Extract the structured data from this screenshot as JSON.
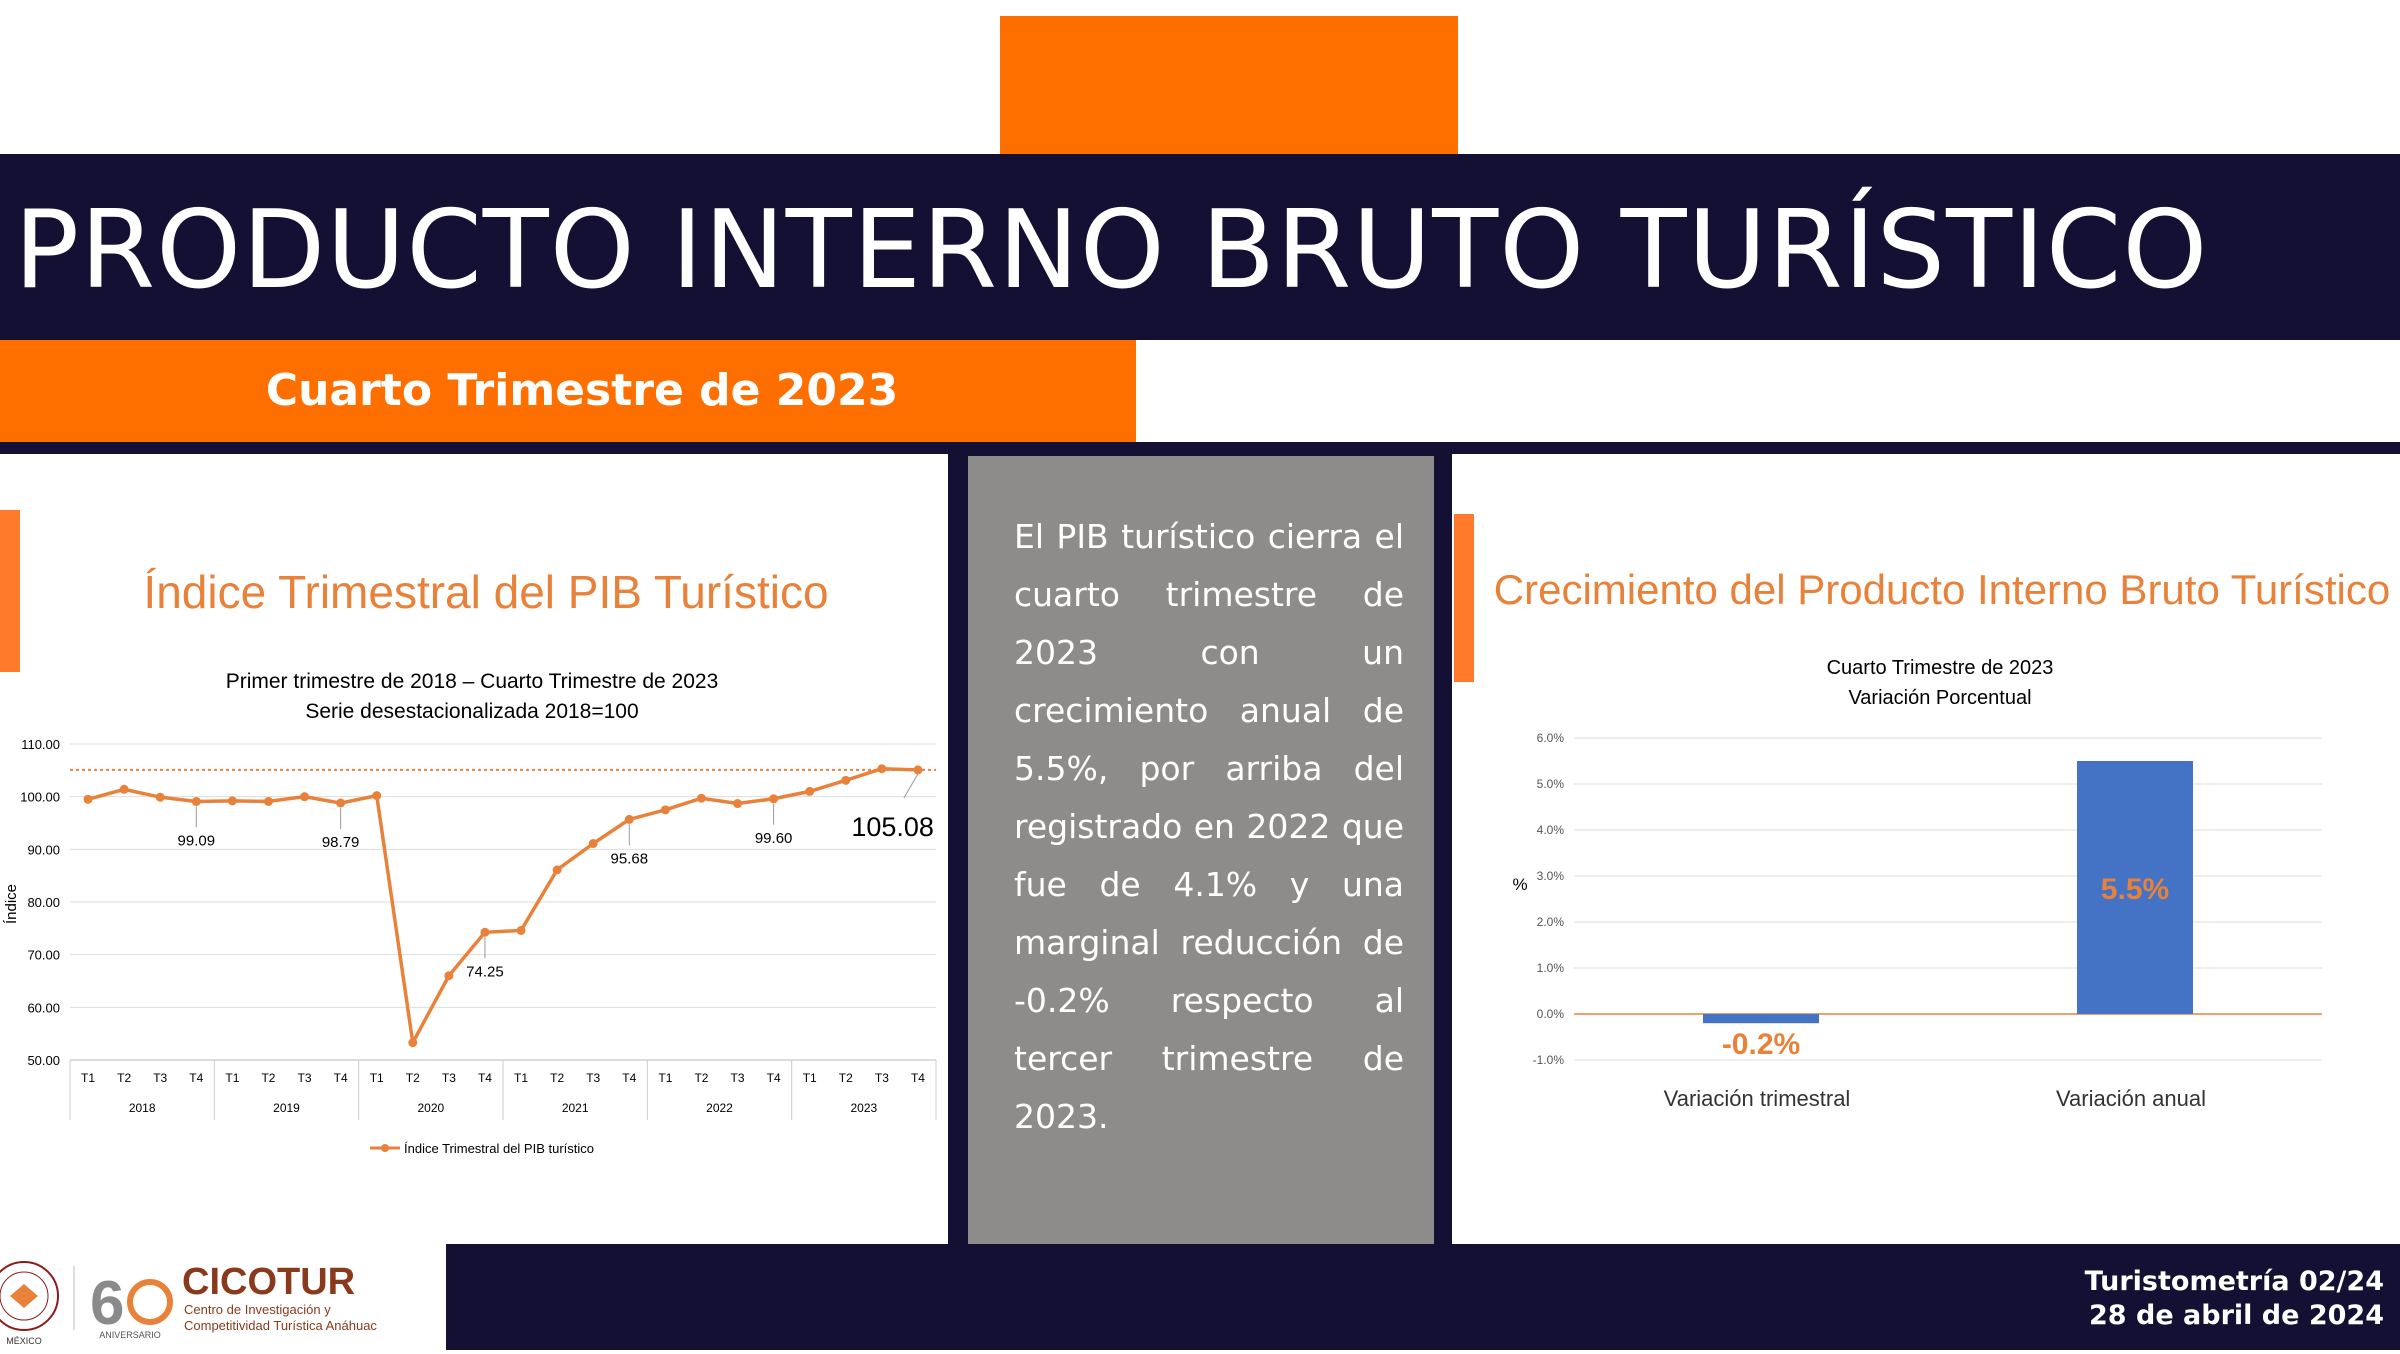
{
  "header": {
    "title": "PRODUCTO INTERNO BRUTO TURÍSTICO",
    "subtitle": "Cuarto Trimestre de 2023"
  },
  "summary_text": "El PIB turístico cierra el cuarto trimestre de 2023 con un crecimiento anual de 5.5%, por arriba del registrado en 2022 que fue de 4.1% y una marginal reducción de -0.2% respecto al tercer trimestre de 2023.",
  "footer": {
    "line1": "Turistometría 02/24",
    "line2": "28 de abril de 2024",
    "logo_name": "CICOTUR",
    "logo_caption_1": "Centro de Investigación y",
    "logo_caption_2": "Competitividad Turística Anáhuac",
    "anniversary_text": "ANIVERSARIO",
    "seal_text": "MÉXICO"
  },
  "colors": {
    "navy": "#141033",
    "orange": "#ff6f00",
    "line_orange": "#e8823a",
    "bar_blue": "#4472c4",
    "panel_gray": "#8e8b8b"
  },
  "chart_data": [
    {
      "type": "line",
      "title": "Índice Trimestral del PIB Turístico",
      "subtitle_1": "Primer trimestre de 2018 – Cuarto Trimestre de 2023",
      "subtitle_2": "Serie desestacionalizada 2018=100",
      "ylabel": "Índice",
      "ylim": [
        50,
        110
      ],
      "yticks": [
        "110.00",
        "100.00",
        "90.00",
        "80.00",
        "70.00",
        "60.00",
        "50.00"
      ],
      "categories": [
        "T1",
        "T2",
        "T3",
        "T4",
        "T1",
        "T2",
        "T3",
        "T4",
        "T1",
        "T2",
        "T3",
        "T4",
        "T1",
        "T2",
        "T3",
        "T4",
        "T1",
        "T2",
        "T3",
        "T4",
        "T1",
        "T2",
        "T3",
        "T4"
      ],
      "years": [
        "2018",
        "2019",
        "2020",
        "2021",
        "2022",
        "2023"
      ],
      "series": [
        {
          "name": "Índice Trimestral del PIB turístico",
          "values": [
            99.5,
            101.4,
            99.9,
            99.09,
            99.2,
            99.1,
            100.0,
            98.79,
            100.2,
            53.3,
            66.0,
            74.25,
            74.6,
            86.1,
            91.1,
            95.68,
            97.5,
            99.7,
            98.7,
            99.6,
            101.0,
            103.1,
            105.3,
            105.08
          ]
        }
      ],
      "reference_line": 105.08,
      "data_labels": [
        {
          "index": 3,
          "text": "99.09"
        },
        {
          "index": 7,
          "text": "98.79"
        },
        {
          "index": 11,
          "text": "74.25"
        },
        {
          "index": 15,
          "text": "95.68"
        },
        {
          "index": 19,
          "text": "99.60"
        },
        {
          "index": 23,
          "text": "105.08"
        }
      ],
      "legend_position": "bottom",
      "grid": true
    },
    {
      "type": "bar",
      "title": "Crecimiento del Producto Interno Bruto Turístico",
      "subtitle_1": "Cuarto Trimestre de 2023",
      "subtitle_2": "Variación Porcentual",
      "ylabel": "%",
      "ylim": [
        -1.0,
        6.0
      ],
      "yticks": [
        "6.0%",
        "5.0%",
        "4.0%",
        "3.0%",
        "2.0%",
        "1.0%",
        "0.0%",
        "-1.0%"
      ],
      "categories": [
        "Variación trimestral",
        "Variación anual"
      ],
      "values": [
        -0.2,
        5.5
      ],
      "value_labels": [
        "-0.2%",
        "5.5%"
      ],
      "grid": true
    }
  ]
}
